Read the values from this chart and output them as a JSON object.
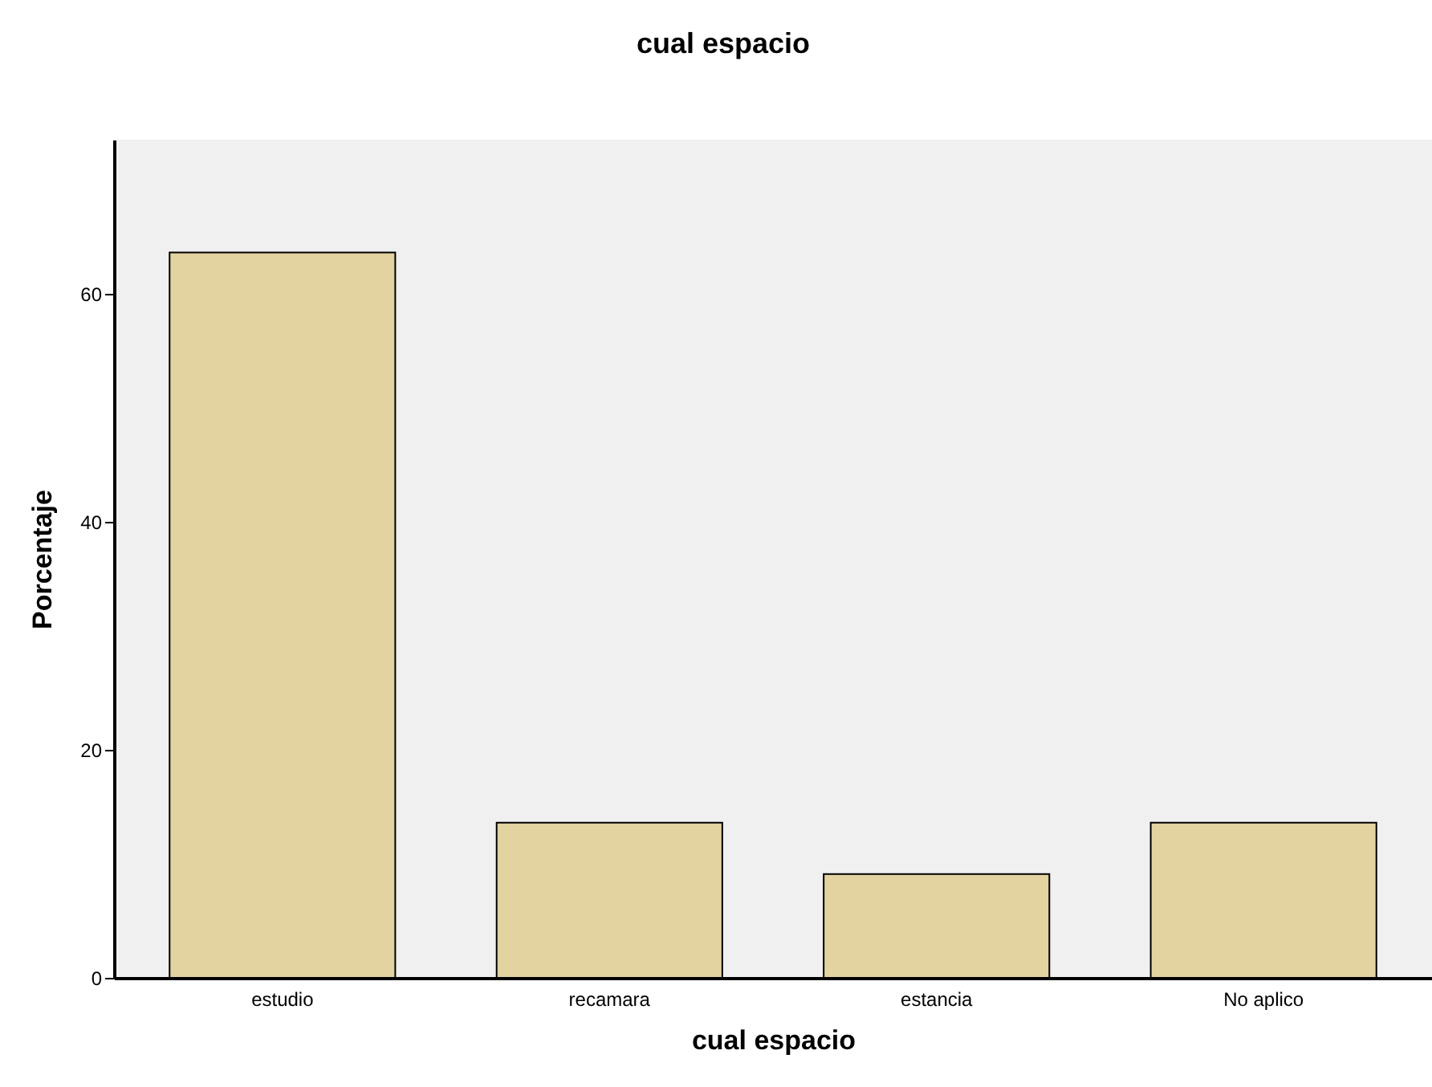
{
  "chart_data": {
    "type": "bar",
    "title": "cual espacio",
    "xlabel": "cual espacio",
    "ylabel": "Porcentaje",
    "categories": [
      "estudio",
      "recamara",
      "estancia",
      "No aplico"
    ],
    "values": [
      63.6,
      13.6,
      9.1,
      13.6
    ],
    "color": "#e2d3a0",
    "ylim": [
      0,
      73.5
    ],
    "yticks": [
      0,
      20,
      40,
      60
    ],
    "grid": false
  }
}
